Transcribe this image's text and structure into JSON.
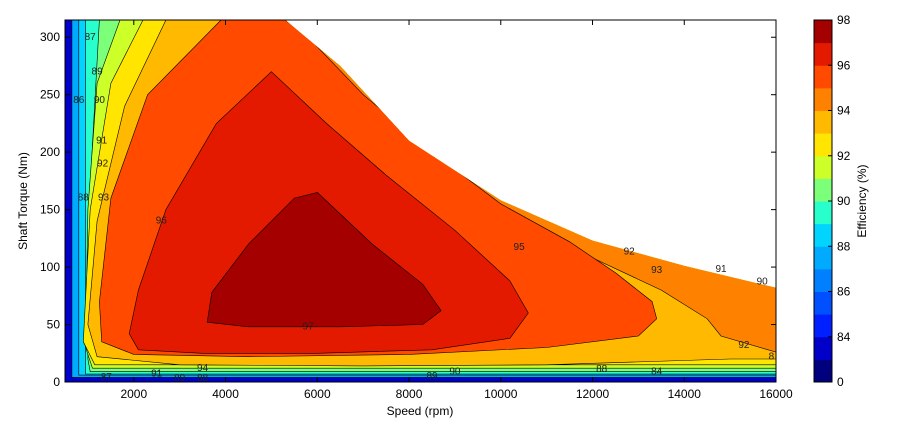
{
  "chart_data": {
    "type": "contour",
    "xlabel": "Speed  (rpm)",
    "ylabel": "Shaft Torque  (Nm)",
    "colorbar_label": "Efficiency (%)",
    "xlim": [
      500,
      16000
    ],
    "ylim": [
      0,
      315
    ],
    "x_ticks": [
      2000,
      4000,
      6000,
      8000,
      10000,
      12000,
      14000,
      16000
    ],
    "y_ticks": [
      0,
      50,
      100,
      150,
      200,
      250,
      300
    ],
    "colorbar_ticks": [
      0,
      84,
      86,
      88,
      90,
      92,
      94,
      96,
      98
    ],
    "colorbar_levels": [
      {
        "label": "0-83",
        "color": "#00007f"
      },
      {
        "label": "83-84",
        "color": "#0000c8"
      },
      {
        "label": "84-85",
        "color": "#0020ff"
      },
      {
        "label": "85-86",
        "color": "#0050ff"
      },
      {
        "label": "86-87",
        "color": "#0080ff"
      },
      {
        "label": "87-88",
        "color": "#00aaff"
      },
      {
        "label": "88-89",
        "color": "#00d4ff"
      },
      {
        "label": "89-90",
        "color": "#29ffcd"
      },
      {
        "label": "90-91",
        "color": "#7cff79"
      },
      {
        "label": "91-92",
        "color": "#cdff29"
      },
      {
        "label": "92-93",
        "color": "#ffe500"
      },
      {
        "label": "93-94",
        "color": "#ffb900"
      },
      {
        "label": "94-95",
        "color": "#ff8100"
      },
      {
        "label": "95-96",
        "color": "#ff4a00"
      },
      {
        "label": "96-97",
        "color": "#e41a00"
      },
      {
        "label": "97-98",
        "color": "#a50000"
      }
    ],
    "max_torque_envelope": [
      {
        "speed": 500,
        "torque": 315
      },
      {
        "speed": 5300,
        "torque": 315
      },
      {
        "speed": 6500,
        "torque": 275
      },
      {
        "speed": 8000,
        "torque": 210
      },
      {
        "speed": 10000,
        "torque": 158
      },
      {
        "speed": 12000,
        "torque": 123
      },
      {
        "speed": 14000,
        "torque": 101
      },
      {
        "speed": 16000,
        "torque": 82
      }
    ],
    "regions": [
      {
        "level": 87,
        "color": "#00aaff",
        "points": [
          [
            650,
            315
          ],
          [
            16000,
            315
          ],
          [
            16000,
            4
          ],
          [
            650,
            4
          ]
        ]
      },
      {
        "level": 88,
        "color": "#00d4ff",
        "points": [
          [
            800,
            315
          ],
          [
            16000,
            315
          ],
          [
            16000,
            6
          ],
          [
            800,
            6
          ]
        ]
      },
      {
        "level": 89,
        "color": "#29ffcd",
        "points": [
          [
            950,
            315
          ],
          [
            16000,
            315
          ],
          [
            16000,
            7
          ],
          [
            950,
            7
          ]
        ]
      },
      {
        "level": 90,
        "color": "#7cff79",
        "points": [
          [
            1250,
            315
          ],
          [
            16000,
            315
          ],
          [
            16000,
            9
          ],
          [
            1050,
            9
          ],
          [
            1000,
            20
          ],
          [
            1020,
            150
          ]
        ]
      },
      {
        "level": 91,
        "color": "#cdff29",
        "points": [
          [
            1700,
            315
          ],
          [
            16000,
            315
          ],
          [
            16000,
            12
          ],
          [
            1100,
            12
          ],
          [
            950,
            30
          ],
          [
            1000,
            150
          ],
          [
            1200,
            260
          ]
        ]
      },
      {
        "level": 92,
        "color": "#ffe500",
        "points": [
          [
            2200,
            315
          ],
          [
            16000,
            315
          ],
          [
            16000,
            15
          ],
          [
            1150,
            15
          ],
          [
            900,
            35
          ],
          [
            1050,
            150
          ],
          [
            1500,
            260
          ]
        ]
      },
      {
        "level": 93,
        "color": "#ffb900",
        "points": [
          [
            2700,
            315
          ],
          [
            16000,
            315
          ],
          [
            16000,
            20
          ],
          [
            15000,
            20
          ],
          [
            11000,
            15
          ],
          [
            7000,
            14
          ],
          [
            3000,
            15
          ],
          [
            1200,
            22
          ],
          [
            1000,
            50
          ],
          [
            1200,
            140
          ],
          [
            1800,
            240
          ]
        ]
      },
      {
        "level": 94,
        "color": "#ff8100",
        "points": [
          [
            3300,
            315
          ],
          [
            16000,
            315
          ],
          [
            16000,
            26
          ],
          [
            14800,
            40
          ],
          [
            14500,
            55
          ],
          [
            13500,
            80
          ],
          [
            12000,
            108
          ],
          [
            10000,
            145
          ],
          [
            10000,
            145
          ],
          [
            8000,
            195
          ],
          [
            6500,
            262
          ],
          [
            5300,
            315
          ]
        ]
      },
      {
        "level": 95,
        "color": "#ff4a00",
        "points": [
          [
            3900,
            315
          ],
          [
            5300,
            315
          ],
          [
            5800,
            300
          ],
          [
            7000,
            250
          ],
          [
            8500,
            200
          ],
          [
            10000,
            155
          ],
          [
            11500,
            122
          ],
          [
            12500,
            95
          ],
          [
            13300,
            70
          ],
          [
            13400,
            55
          ],
          [
            13000,
            40
          ],
          [
            11000,
            30
          ],
          [
            8000,
            24
          ],
          [
            4500,
            22
          ],
          [
            2000,
            24
          ],
          [
            1300,
            35
          ],
          [
            1250,
            70
          ],
          [
            1500,
            160
          ],
          [
            2300,
            250
          ]
        ]
      },
      {
        "level": 96,
        "color": "#e41a00",
        "points": [
          [
            5000,
            270
          ],
          [
            6200,
            225
          ],
          [
            7500,
            180
          ],
          [
            9000,
            132
          ],
          [
            10200,
            88
          ],
          [
            10600,
            60
          ],
          [
            10200,
            38
          ],
          [
            8500,
            28
          ],
          [
            6000,
            25
          ],
          [
            3500,
            25
          ],
          [
            2100,
            28
          ],
          [
            1900,
            42
          ],
          [
            2100,
            80
          ],
          [
            2700,
            150
          ],
          [
            3800,
            225
          ]
        ]
      },
      {
        "level": 97,
        "color": "#a50000",
        "points": [
          [
            6000,
            165
          ],
          [
            7200,
            120
          ],
          [
            8300,
            85
          ],
          [
            8700,
            62
          ],
          [
            8300,
            50
          ],
          [
            6500,
            48
          ],
          [
            4500,
            48
          ],
          [
            3600,
            52
          ],
          [
            3700,
            78
          ],
          [
            4500,
            120
          ],
          [
            5500,
            160
          ]
        ]
      }
    ],
    "contour_labels": [
      {
        "text": "87",
        "speed": 1050,
        "torque": 300
      },
      {
        "text": "89",
        "speed": 1200,
        "torque": 270
      },
      {
        "text": "90",
        "speed": 1250,
        "torque": 245
      },
      {
        "text": "91",
        "speed": 1300,
        "torque": 210
      },
      {
        "text": "92",
        "speed": 1320,
        "torque": 190
      },
      {
        "text": "93",
        "speed": 1340,
        "torque": 160
      },
      {
        "text": "88",
        "speed": 900,
        "torque": 160
      },
      {
        "text": "86",
        "speed": 800,
        "torque": 245
      },
      {
        "text": "96",
        "speed": 2600,
        "torque": 140
      },
      {
        "text": "95",
        "speed": 10400,
        "torque": 117
      },
      {
        "text": "92",
        "speed": 12800,
        "torque": 113
      },
      {
        "text": "93",
        "speed": 13400,
        "torque": 97
      },
      {
        "text": "91",
        "speed": 14800,
        "torque": 98
      },
      {
        "text": "90",
        "speed": 15700,
        "torque": 87
      },
      {
        "text": "92",
        "speed": 15300,
        "torque": 32
      },
      {
        "text": "97",
        "speed": 5800,
        "torque": 48
      },
      {
        "text": "94",
        "speed": 3500,
        "torque": 12
      },
      {
        "text": "91",
        "speed": 2500,
        "torque": 7
      },
      {
        "text": "89",
        "speed": 3000,
        "torque": 3
      },
      {
        "text": "87",
        "speed": 1400,
        "torque": 4
      },
      {
        "text": "88",
        "speed": 3500,
        "torque": 3
      },
      {
        "text": "89",
        "speed": 8500,
        "torque": 5
      },
      {
        "text": "90",
        "speed": 9000,
        "torque": 9
      },
      {
        "text": "88",
        "speed": 12200,
        "torque": 11
      },
      {
        "text": "84",
        "speed": 13400,
        "torque": 9
      },
      {
        "text": "8",
        "speed": 15900,
        "torque": 22
      }
    ]
  }
}
